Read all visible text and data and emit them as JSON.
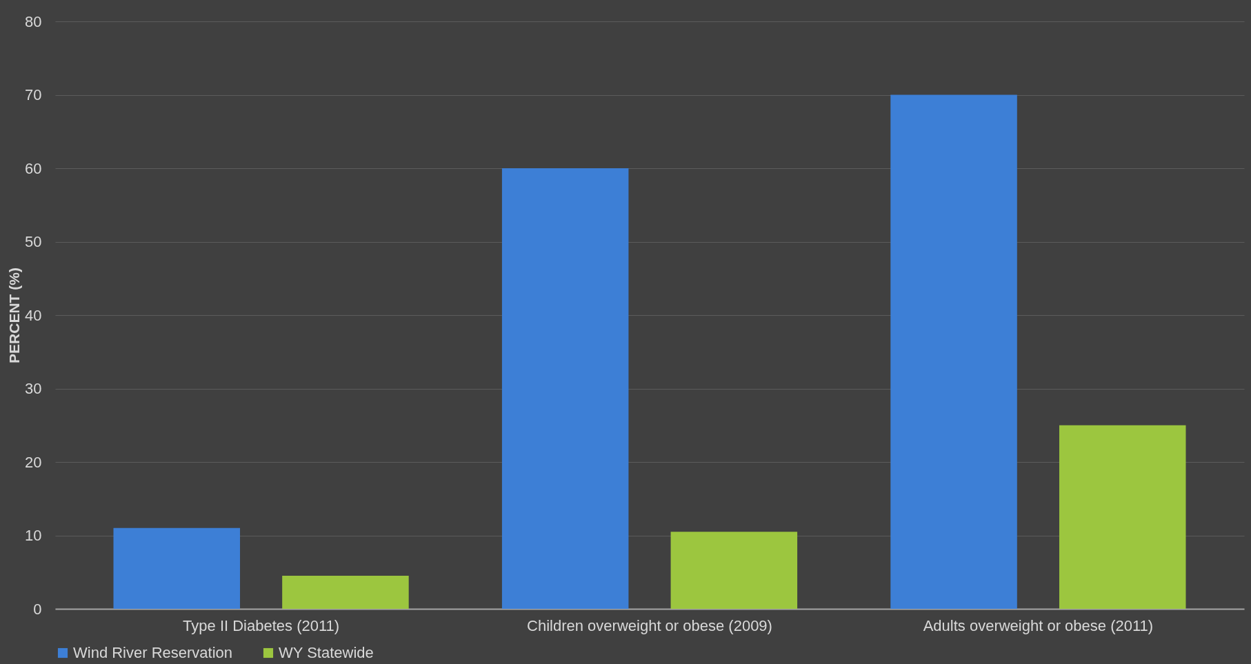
{
  "chart_data": {
    "type": "bar",
    "ylabel": "PERCENT (%)",
    "categories": [
      "Type II Diabetes (2011)",
      "Children overweight or obese (2009)",
      "Adults overweight or obese (2011)"
    ],
    "series": [
      {
        "name": "Wind River Reservation",
        "color": "#3d7fd6",
        "values": [
          11,
          60,
          70
        ]
      },
      {
        "name": "WY Statewide",
        "color": "#9cc63f",
        "values": [
          4.5,
          10.5,
          25
        ]
      }
    ],
    "ylim": [
      0,
      80
    ],
    "yticks": [
      0,
      10,
      20,
      30,
      40,
      50,
      60,
      70,
      80
    ],
    "grid": "y",
    "legend": "bottom"
  }
}
